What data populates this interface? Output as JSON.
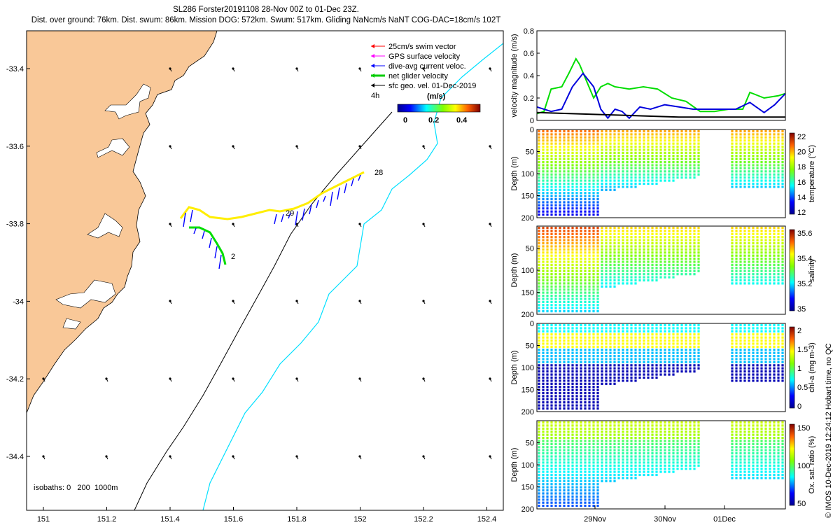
{
  "header": {
    "line1": "SL286 Forster20191108 28-Nov 00Z to 01-Dec 23Z.",
    "line2": "Dist. over ground: 76km. Dist. swum: 86km. Mission DOG: 572km. Swum: 517km. Gliding NaNcm/s NaNT COG-DAC=18cm/s 102T"
  },
  "map": {
    "lon_ticks": [
      "151",
      "151.2",
      "151.4",
      "151.6",
      "151.8",
      "152",
      "152.2",
      "152.4"
    ],
    "lat_ticks": [
      "-33.4",
      "-33.6",
      "-33.8",
      "-34",
      "-34.2",
      "-34.4"
    ],
    "legend": [
      {
        "label": "25cm/s swim vector",
        "color": "#ff0000"
      },
      {
        "label": "GPS surface velocity",
        "color": "#ff00ff"
      },
      {
        "label": "dive-avg current veloc.",
        "color": "#0000ff"
      },
      {
        "label": "net glider velocity",
        "color": "#00cc00"
      },
      {
        "label": "sfc geo. vel. 01-Dec-2019",
        "color": "#000000"
      }
    ],
    "time_step_label": "4h",
    "colorbar": {
      "title": "(m/s)",
      "ticks": [
        "0",
        "0.2",
        "0.4"
      ]
    },
    "track_labels": {
      "start": "28",
      "mid": "29",
      "end": "2"
    },
    "isobaths_label": "isobaths: 0   200  1000m",
    "colors": {
      "land": "#f9c898",
      "coastline": "#000000",
      "isobath_200": "#000000",
      "isobath_1000": "#00e0ff"
    }
  },
  "chart_data": [
    {
      "type": "line",
      "ylabel": "velocity magnitude (m/s)",
      "ylim": [
        0,
        0.8
      ],
      "y_ticks": [
        "0",
        "0.2",
        "0.4",
        "0.6",
        "0.8"
      ],
      "x_ticks": [
        "29Nov",
        "30Nov",
        "01Dec"
      ],
      "series": [
        {
          "name": "net glider velocity",
          "color": "#00dd00",
          "x": [
            0,
            0.1,
            0.2,
            0.35,
            0.45,
            0.55,
            0.6,
            0.7,
            0.8,
            0.9,
            1.0,
            1.1,
            1.3,
            1.5,
            1.7,
            1.9,
            2.1,
            2.3,
            2.5,
            2.7,
            2.9,
            3.0,
            3.2,
            3.4,
            3.5
          ],
          "y": [
            0.06,
            0.08,
            0.28,
            0.3,
            0.42,
            0.55,
            0.5,
            0.35,
            0.2,
            0.3,
            0.33,
            0.3,
            0.28,
            0.3,
            0.28,
            0.2,
            0.17,
            0.08,
            0.08,
            0.1,
            0.1,
            0.25,
            0.2,
            0.22,
            0.24
          ]
        },
        {
          "name": "dive-avg current veloc.",
          "color": "#0000dd",
          "x": [
            0,
            0.2,
            0.35,
            0.5,
            0.65,
            0.8,
            0.9,
            1.0,
            1.1,
            1.2,
            1.3,
            1.45,
            1.6,
            1.8,
            2.0,
            2.2,
            2.4,
            2.6,
            2.8,
            3.0,
            3.2,
            3.35,
            3.5
          ],
          "y": [
            0.12,
            0.08,
            0.1,
            0.3,
            0.42,
            0.3,
            0.1,
            0.02,
            0.1,
            0.08,
            0.02,
            0.12,
            0.1,
            0.14,
            0.12,
            0.1,
            0.1,
            0.1,
            0.1,
            0.16,
            0.07,
            0.14,
            0.24
          ]
        },
        {
          "name": "sfc geo. vel.",
          "color": "#000000",
          "x": [
            0,
            0.5,
            1.0,
            1.5,
            2.0,
            3.5
          ],
          "y": [
            0.07,
            0.06,
            0.05,
            0.04,
            0.03,
            0.03
          ]
        }
      ]
    },
    {
      "type": "scatter",
      "ylabel": "Depth (m)",
      "y_ticks": [
        "0",
        "50",
        "100",
        "150",
        "200"
      ],
      "ylim": [
        0,
        200
      ],
      "colorbar_label": "temperature (°C)",
      "colorbar_ticks": [
        "12",
        "14",
        "16",
        "18",
        "20",
        "22"
      ]
    },
    {
      "type": "scatter",
      "ylabel": "Depth (m)",
      "y_ticks": [
        "50",
        "100",
        "150",
        "200"
      ],
      "ylim": [
        0,
        200
      ],
      "colorbar_label": "salinity",
      "colorbar_ticks": [
        "35",
        "35.2",
        "35.4",
        "35.6"
      ]
    },
    {
      "type": "scatter",
      "ylabel": "Depth (m)",
      "y_ticks": [
        "0",
        "50",
        "100",
        "150",
        "200"
      ],
      "ylim": [
        0,
        200
      ],
      "colorbar_label": "chl-a (mg m-3)",
      "colorbar_ticks": [
        "0",
        "0.5",
        "1",
        "1.5",
        "2"
      ]
    },
    {
      "type": "scatter",
      "ylabel": "Depth (m)",
      "y_ticks": [
        "50",
        "100",
        "150",
        "200"
      ],
      "ylim": [
        0,
        200
      ],
      "colorbar_label": "Ox. sat. ratio (%)",
      "colorbar_ticks": [
        "50",
        "100",
        "150"
      ],
      "x_ticks": [
        "29Nov",
        "30Nov",
        "01Dec"
      ]
    }
  ],
  "footer": {
    "credit": "© IMOS 10-Dec-2019 12:24:12 Hobart time, no QC"
  }
}
